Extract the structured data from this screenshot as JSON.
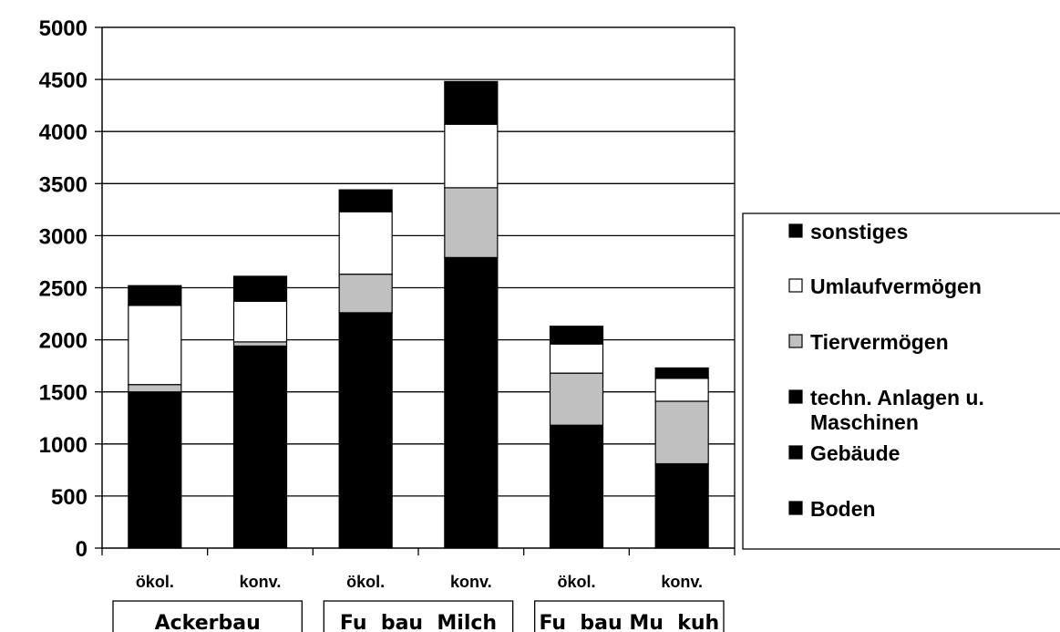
{
  "chart_data": {
    "type": "bar",
    "stacked": true,
    "categories": [
      "ökol.",
      "konv.",
      "ökol.",
      "konv.",
      "ökol.",
      "konv."
    ],
    "groups": [
      {
        "label": "Ackerbau",
        "categories": [
          0,
          1
        ]
      },
      {
        "label": "Fu  bau  Milch",
        "categories": [
          2,
          3
        ]
      },
      {
        "label": "Fu  bau Mu  kuh",
        "categories": [
          4,
          5
        ]
      }
    ],
    "series": [
      {
        "name": "Boden + Gebäude + techn. Anlagen u. Maschinen",
        "color": "#000000",
        "values": [
          1500,
          1940,
          2260,
          2790,
          1180,
          810
        ]
      },
      {
        "name": "Tiervermögen",
        "color": "#c0c0c0",
        "values": [
          70,
          40,
          370,
          670,
          500,
          600
        ]
      },
      {
        "name": "Umlaufvermögen",
        "color": "#ffffff",
        "values": [
          760,
          390,
          600,
          610,
          280,
          220
        ]
      },
      {
        "name": "sonstiges",
        "color": "#000000",
        "values": [
          190,
          240,
          210,
          410,
          170,
          100
        ]
      }
    ],
    "legend": {
      "position": "right",
      "entries": [
        {
          "label": "sonstiges",
          "color": "#000000"
        },
        {
          "label": "Umlaufvermögen",
          "color": "#ffffff"
        },
        {
          "label": "Tiervermögen",
          "color": "#c0c0c0"
        },
        {
          "label": "techn. Anlagen u.",
          "label2": "Maschinen",
          "color": "#000000"
        },
        {
          "label": "Gebäude",
          "color": "#000000"
        },
        {
          "label": "Boden",
          "color": "#000000"
        }
      ]
    },
    "ylim": [
      0,
      5000
    ],
    "yticks": [
      0,
      500,
      1000,
      1500,
      2000,
      2500,
      3000,
      3500,
      4000,
      4500,
      5000
    ],
    "grid": true
  }
}
